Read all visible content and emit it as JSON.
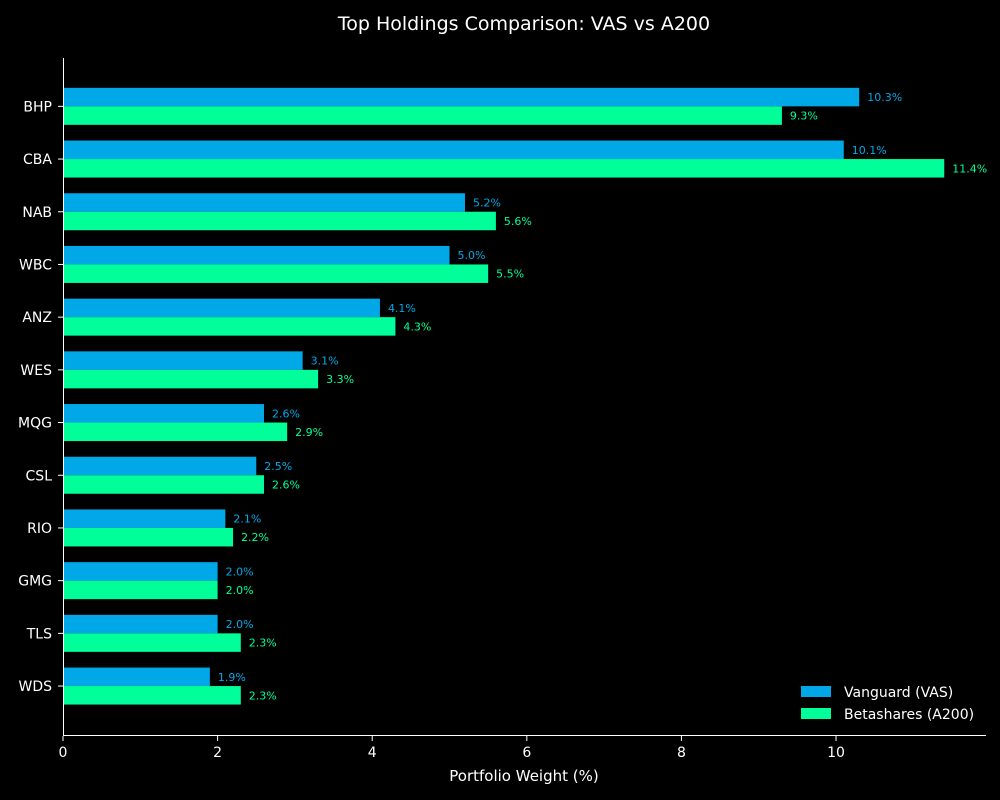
{
  "chart_data": {
    "type": "bar",
    "orientation": "horizontal",
    "title": "Top Holdings Comparison: VAS vs A200",
    "xlabel": "Portfolio Weight (%)",
    "ylabel": "",
    "categories": [
      "BHP",
      "CBA",
      "NAB",
      "WBC",
      "ANZ",
      "WES",
      "MQG",
      "CSL",
      "RIO",
      "GMG",
      "TLS",
      "WDS"
    ],
    "series": [
      {
        "name": "Vanguard (VAS)",
        "color": "#00a8e8",
        "values": [
          10.3,
          10.1,
          5.2,
          5.0,
          4.1,
          3.1,
          2.6,
          2.5,
          2.1,
          2.0,
          2.0,
          1.9
        ],
        "labels": [
          "10.3%",
          "10.1%",
          "5.2%",
          "5.0%",
          "4.1%",
          "3.1%",
          "2.6%",
          "2.5%",
          "2.1%",
          "2.0%",
          "2.0%",
          "1.9%"
        ]
      },
      {
        "name": "Betashares (A200)",
        "color": "#00ff99",
        "values": [
          9.3,
          11.4,
          5.6,
          5.5,
          4.3,
          3.3,
          2.9,
          2.6,
          2.2,
          2.0,
          2.3,
          2.3
        ],
        "labels": [
          "9.3%",
          "11.4%",
          "5.6%",
          "5.5%",
          "4.3%",
          "3.3%",
          "2.9%",
          "2.6%",
          "2.2%",
          "2.0%",
          "2.3%",
          "2.3%"
        ]
      }
    ],
    "xlim": [
      0,
      11.94
    ],
    "xticks": [
      0,
      2,
      4,
      6,
      8,
      10
    ],
    "grid": false,
    "legend_position": "bottom-right",
    "background": "#000000"
  }
}
